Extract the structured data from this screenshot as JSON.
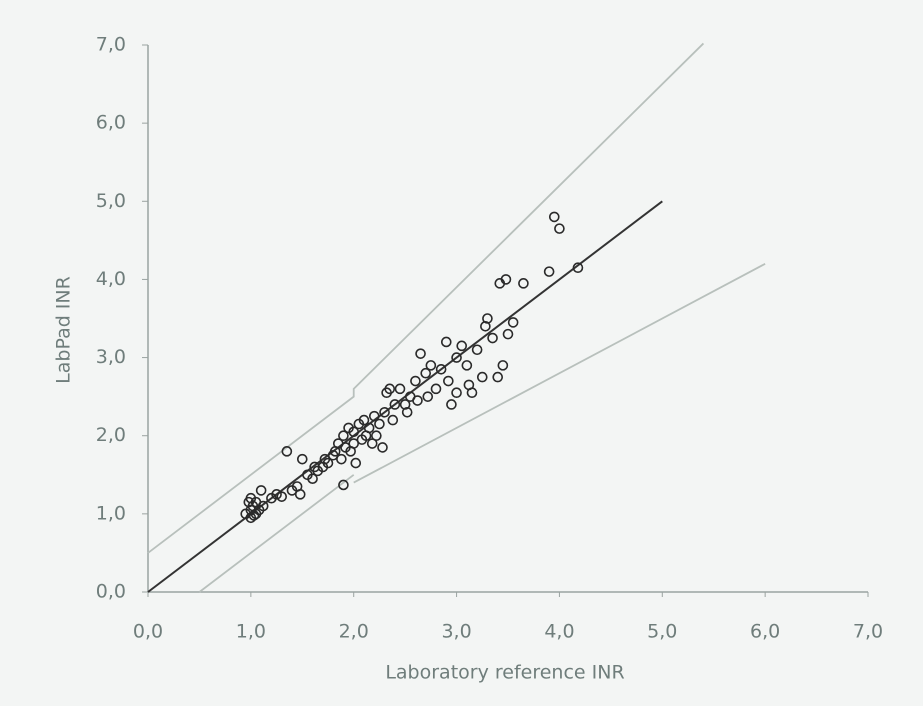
{
  "chart_data": {
    "type": "scatter",
    "x_label": "Laboratory reference  INR",
    "y_label": "LabPad INR",
    "xlim": [
      0,
      7
    ],
    "ylim": [
      0,
      7
    ],
    "xticks": [
      {
        "value": 0,
        "label": "0,0"
      },
      {
        "value": 1,
        "label": "1,0"
      },
      {
        "value": 2,
        "label": "2,0"
      },
      {
        "value": 3,
        "label": "3,0"
      },
      {
        "value": 4,
        "label": "4,0"
      },
      {
        "value": 5,
        "label": "5,0"
      },
      {
        "value": 6,
        "label": "6,0"
      },
      {
        "value": 7,
        "label": "7,0"
      }
    ],
    "yticks": [
      {
        "value": 0,
        "label": "0,0"
      },
      {
        "value": 1,
        "label": "1,0"
      },
      {
        "value": 2,
        "label": "2,0"
      },
      {
        "value": 3,
        "label": "3,0"
      },
      {
        "value": 4,
        "label": "4,0"
      },
      {
        "value": 5,
        "label": "5,0"
      },
      {
        "value": 6,
        "label": "6,0"
      },
      {
        "value": 7,
        "label": "7,0"
      }
    ],
    "series": [
      {
        "color": "#2a2a2a",
        "x": [
          0.95,
          1.0,
          1.0,
          1.02,
          1.05,
          0.98,
          1.03,
          1.08,
          1.1,
          1.12,
          1.0,
          1.05,
          1.2,
          1.25,
          1.3,
          1.35,
          1.4,
          1.45,
          1.48,
          1.5,
          1.55,
          1.6,
          1.62,
          1.65,
          1.7,
          1.72,
          1.75,
          1.8,
          1.82,
          1.85,
          1.88,
          1.9,
          1.9,
          1.92,
          1.95,
          1.97,
          2.0,
          2.0,
          2.02,
          2.05,
          2.08,
          2.1,
          2.12,
          2.15,
          2.18,
          2.2,
          2.22,
          2.25,
          2.28,
          2.3,
          2.32,
          2.35,
          2.38,
          2.4,
          2.45,
          2.5,
          2.52,
          2.55,
          2.6,
          2.62,
          2.65,
          2.7,
          2.72,
          2.75,
          2.8,
          2.85,
          2.9,
          2.92,
          2.95,
          3.0,
          3.0,
          3.05,
          3.1,
          3.12,
          3.15,
          3.2,
          3.25,
          3.28,
          3.3,
          3.35,
          3.4,
          3.42,
          3.45,
          3.48,
          3.5,
          3.55,
          3.65,
          3.9,
          3.95,
          4.0,
          4.18
        ],
        "values": [
          1.0,
          1.05,
          0.95,
          1.1,
          1.0,
          1.15,
          0.98,
          1.05,
          1.3,
          1.1,
          1.2,
          1.15,
          1.2,
          1.25,
          1.22,
          1.8,
          1.3,
          1.35,
          1.25,
          1.7,
          1.5,
          1.45,
          1.6,
          1.55,
          1.6,
          1.7,
          1.65,
          1.75,
          1.8,
          1.9,
          1.7,
          1.37,
          2.0,
          1.85,
          2.1,
          1.8,
          1.9,
          2.05,
          1.65,
          2.15,
          1.95,
          2.2,
          2.0,
          2.1,
          1.9,
          2.25,
          2.0,
          2.15,
          1.85,
          2.3,
          2.55,
          2.6,
          2.2,
          2.4,
          2.6,
          2.4,
          2.3,
          2.5,
          2.7,
          2.45,
          3.05,
          2.8,
          2.5,
          2.9,
          2.6,
          2.85,
          3.2,
          2.7,
          2.4,
          2.55,
          3.0,
          3.15,
          2.9,
          2.65,
          2.55,
          3.1,
          2.75,
          3.4,
          3.5,
          3.25,
          2.75,
          3.95,
          2.9,
          4.0,
          3.3,
          3.45,
          3.95,
          4.1,
          4.8,
          4.65,
          4.15
        ]
      }
    ],
    "lines": [
      {
        "color": "#333333",
        "x": [
          0,
          5
        ],
        "values": [
          0,
          5
        ]
      },
      {
        "color": "#b8c0bc",
        "x": [
          0,
          2,
          2,
          5.4
        ],
        "values": [
          0.5,
          2.5,
          2.6,
          7.02
        ]
      },
      {
        "color": "#b8c0bc",
        "x": [
          0.5,
          2,
          null,
          2,
          6
        ],
        "values": [
          0,
          1.5,
          null,
          1.4,
          4.2
        ]
      }
    ]
  }
}
